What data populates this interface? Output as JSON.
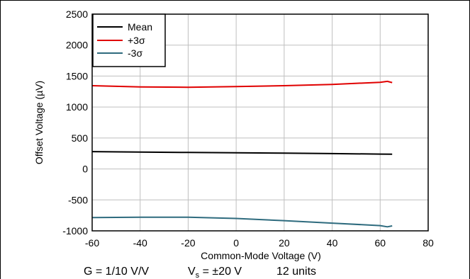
{
  "chart_data": {
    "type": "line",
    "title": "",
    "xlabel": "Common-Mode Voltage (V)",
    "ylabel": "Offset Voltage (µV)",
    "xlim": [
      -60,
      80
    ],
    "ylim": [
      -1000,
      2500
    ],
    "x_ticks": [
      "-60",
      "-40",
      "-20",
      "0",
      "20",
      "40",
      "60",
      "80"
    ],
    "y_ticks": [
      "2500",
      "2000",
      "1500",
      "1000",
      "500",
      "0",
      "-500",
      "-1000"
    ],
    "grid": true,
    "legend_position": "top-left",
    "series": [
      {
        "name": "Mean",
        "color": "#000000",
        "points": [
          [
            -60,
            280
          ],
          [
            -40,
            273
          ],
          [
            -20,
            266
          ],
          [
            0,
            262
          ],
          [
            20,
            255
          ],
          [
            40,
            248
          ],
          [
            60,
            240
          ],
          [
            65,
            238
          ]
        ]
      },
      {
        "name": "+3σ",
        "color": "#e00000",
        "points": [
          [
            -60,
            1345
          ],
          [
            -40,
            1325
          ],
          [
            -20,
            1320
          ],
          [
            0,
            1330
          ],
          [
            20,
            1345
          ],
          [
            40,
            1365
          ],
          [
            60,
            1400
          ],
          [
            63,
            1415
          ],
          [
            65,
            1395
          ]
        ]
      },
      {
        "name": "-3σ",
        "color": "#2e6b7e",
        "points": [
          [
            -60,
            -785
          ],
          [
            -40,
            -780
          ],
          [
            -20,
            -780
          ],
          [
            0,
            -800
          ],
          [
            20,
            -835
          ],
          [
            40,
            -875
          ],
          [
            60,
            -915
          ],
          [
            63,
            -935
          ],
          [
            65,
            -920
          ]
        ]
      }
    ],
    "footnote": {
      "gain": "G = 1/10 V/V",
      "vs_main": "V",
      "vs_sub": "s",
      "vs_value": " = ±20 V",
      "units": "12 units"
    }
  }
}
